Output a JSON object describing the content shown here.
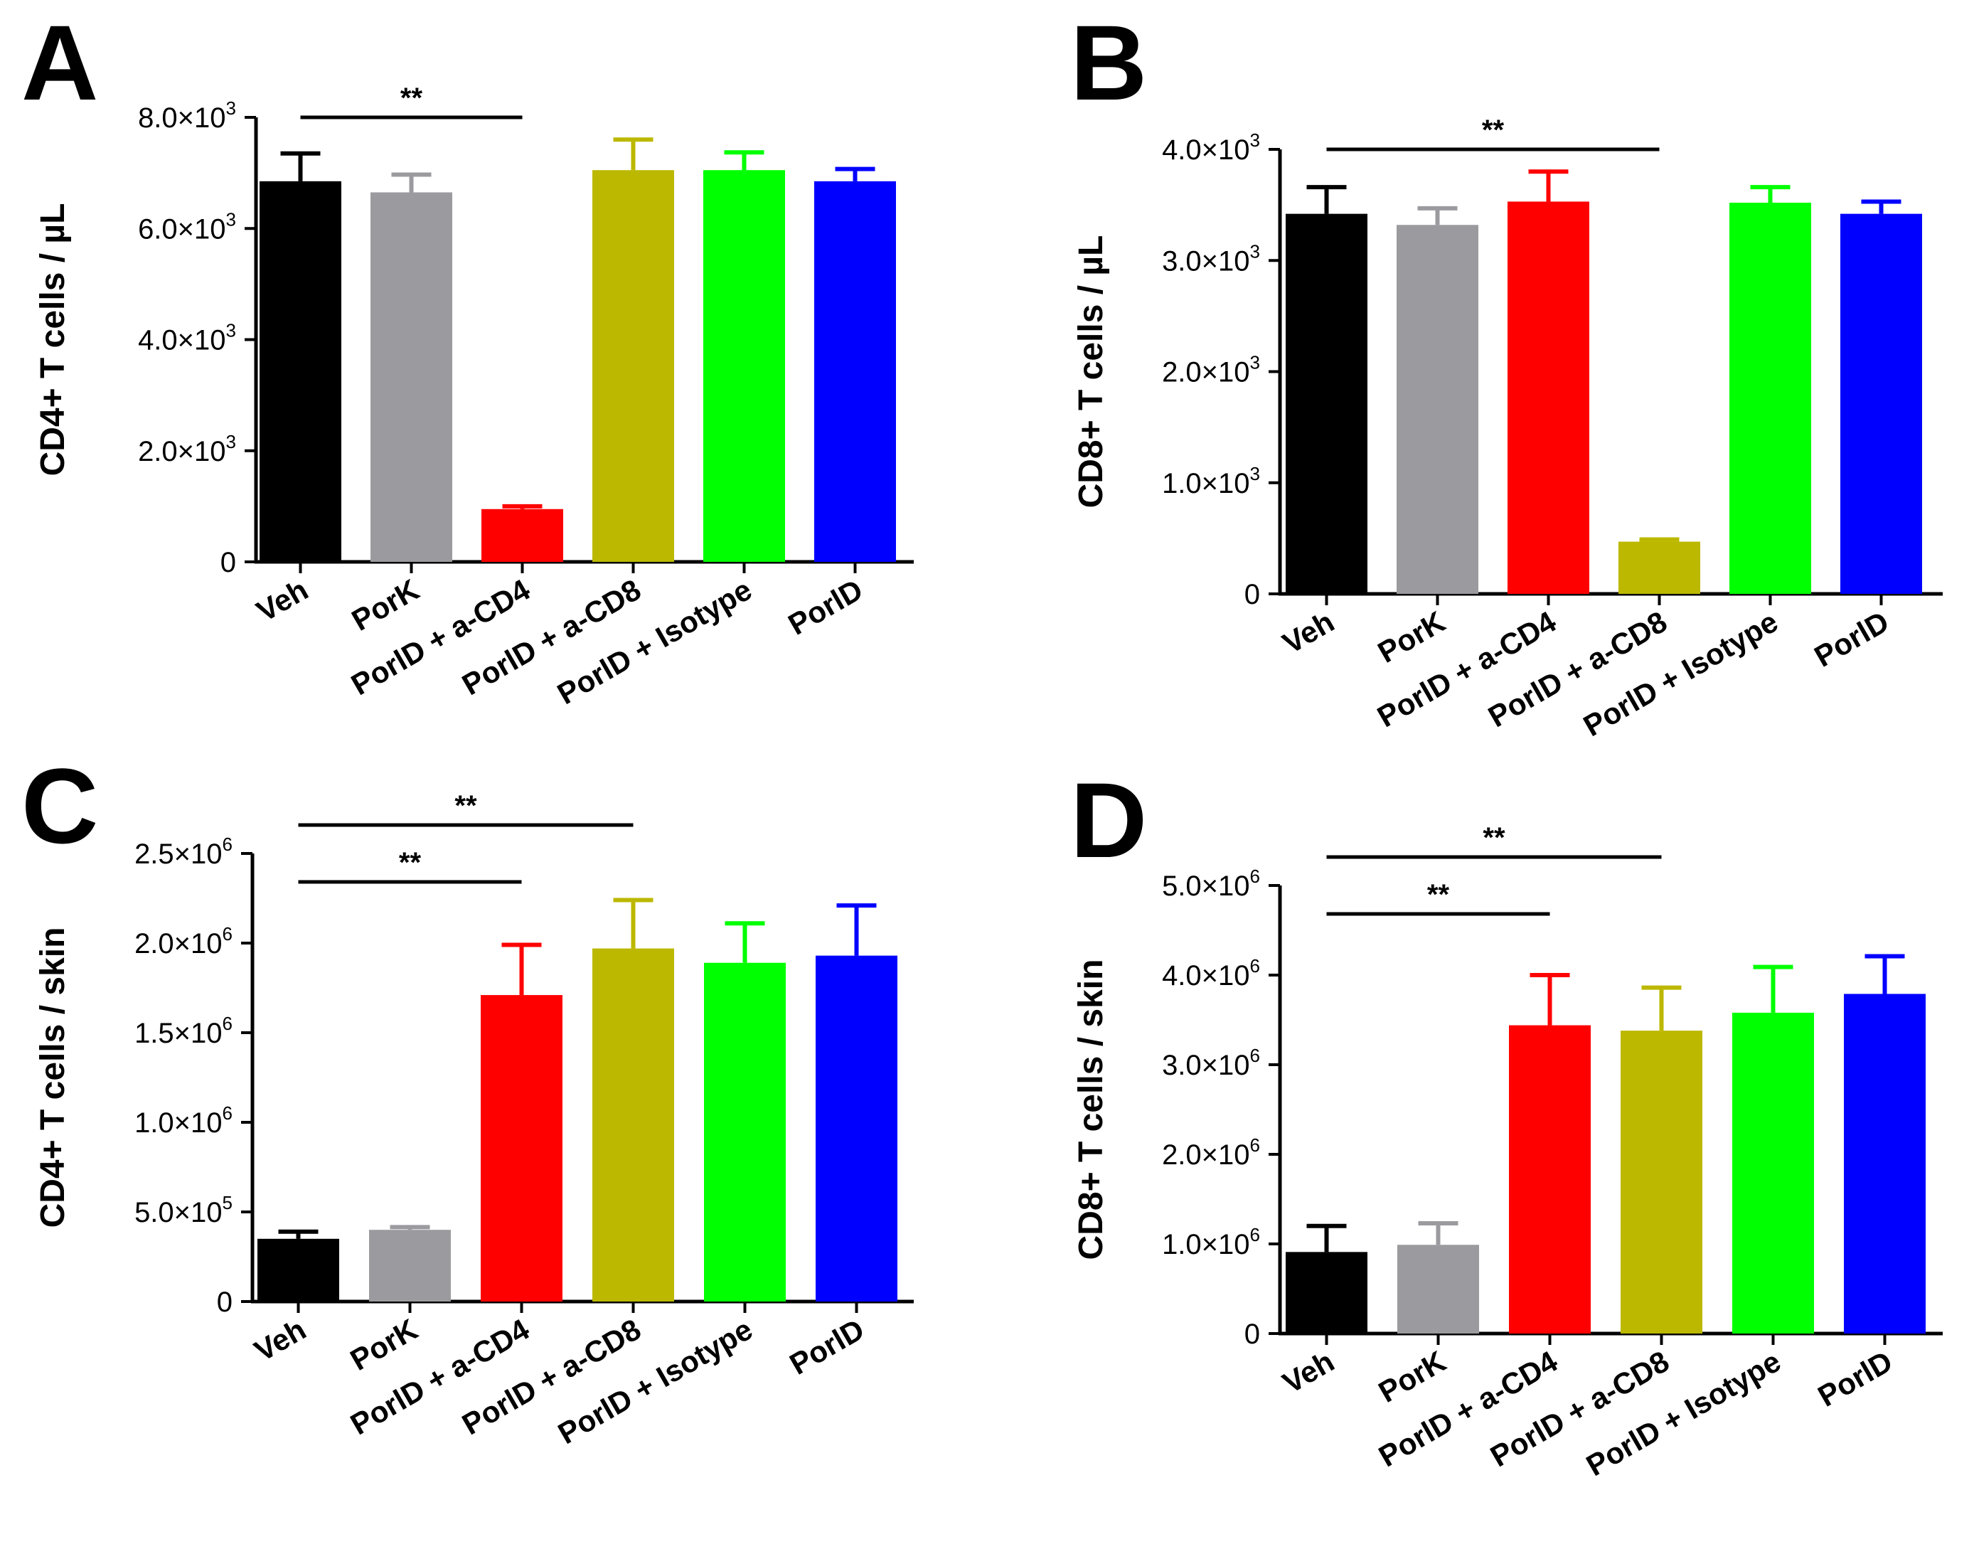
{
  "colors": {
    "Veh": "#000000",
    "PorK": "#9b9b9f",
    "PorlD + a-CD4": "#ff0000",
    "PorlD + a-CD8": "#bcb800",
    "PorlD + Isotype": "#00ff00",
    "PorlD": "#0000ff"
  },
  "chart_data": [
    {
      "panel": "A",
      "type": "bar",
      "ylabel": "CD4+ T cells / µL",
      "categories": [
        "Veh",
        "PorK",
        "PorlD + a-CD4",
        "PorlD + a-CD8",
        "PorlD + Isotype",
        "PorlD"
      ],
      "values": [
        6850,
        6650,
        950,
        7050,
        7050,
        6850
      ],
      "errors": [
        500,
        320,
        50,
        550,
        320,
        220
      ],
      "ylim": [
        0,
        8000
      ],
      "yticks": [
        {
          "value": 0,
          "mant": "0",
          "exp": ""
        },
        {
          "value": 2000,
          "mant": "2.0×10",
          "exp": "3"
        },
        {
          "value": 4000,
          "mant": "4.0×10",
          "exp": "3"
        },
        {
          "value": 6000,
          "mant": "6.0×10",
          "exp": "3"
        },
        {
          "value": 8000,
          "mant": "8.0×10",
          "exp": "3"
        }
      ],
      "significance": [
        {
          "from": 0,
          "to": 2,
          "label": "**",
          "level": 0
        }
      ]
    },
    {
      "panel": "B",
      "type": "bar",
      "ylabel": "CD8+ T cells / µL",
      "categories": [
        "Veh",
        "PorK",
        "PorlD + a-CD4",
        "PorlD + a-CD8",
        "PorlD + Isotype",
        "PorlD"
      ],
      "values": [
        3420,
        3320,
        3530,
        470,
        3520,
        3420
      ],
      "errors": [
        240,
        150,
        270,
        20,
        140,
        110
      ],
      "ylim": [
        0,
        4000
      ],
      "yticks": [
        {
          "value": 0,
          "mant": "0",
          "exp": ""
        },
        {
          "value": 1000,
          "mant": "1.0×10",
          "exp": "3"
        },
        {
          "value": 2000,
          "mant": "2.0×10",
          "exp": "3"
        },
        {
          "value": 3000,
          "mant": "3.0×10",
          "exp": "3"
        },
        {
          "value": 4000,
          "mant": "4.0×10",
          "exp": "3"
        }
      ],
      "significance": [
        {
          "from": 0,
          "to": 3,
          "label": "**",
          "level": 0
        }
      ]
    },
    {
      "panel": "C",
      "type": "bar",
      "ylabel": "CD4+ T cells / skin",
      "categories": [
        "Veh",
        "PorK",
        "PorlD + a-CD4",
        "PorlD + a-CD8",
        "PorlD + Isotype",
        "PorlD"
      ],
      "values": [
        350000,
        400000,
        1710000,
        1970000,
        1890000,
        1930000
      ],
      "errors": [
        40000,
        15000,
        280000,
        270000,
        220000,
        280000
      ],
      "ylim": [
        0,
        2500000
      ],
      "yticks": [
        {
          "value": 0,
          "mant": "0",
          "exp": ""
        },
        {
          "value": 500000,
          "mant": "5.0×10",
          "exp": "5"
        },
        {
          "value": 1000000,
          "mant": "1.0×10",
          "exp": "6"
        },
        {
          "value": 1500000,
          "mant": "1.5×10",
          "exp": "6"
        },
        {
          "value": 2000000,
          "mant": "2.0×10",
          "exp": "6"
        },
        {
          "value": 2500000,
          "mant": "2.5×10",
          "exp": "6"
        }
      ],
      "significance": [
        {
          "from": 0,
          "to": 2,
          "label": "**",
          "level": 0
        },
        {
          "from": 0,
          "to": 3,
          "label": "**",
          "level": 1
        }
      ]
    },
    {
      "panel": "D",
      "type": "bar",
      "ylabel": "CD8+ T cells / skin",
      "categories": [
        "Veh",
        "PorK",
        "PorlD + a-CD4",
        "PorlD + a-CD8",
        "PorlD + Isotype",
        "PorlD"
      ],
      "values": [
        910000,
        990000,
        3440000,
        3380000,
        3580000,
        3790000
      ],
      "errors": [
        290000,
        240000,
        560000,
        480000,
        510000,
        420000
      ],
      "ylim": [
        0,
        5000000
      ],
      "yticks": [
        {
          "value": 0,
          "mant": "0",
          "exp": ""
        },
        {
          "value": 1000000,
          "mant": "1.0×10",
          "exp": "6"
        },
        {
          "value": 2000000,
          "mant": "2.0×10",
          "exp": "6"
        },
        {
          "value": 3000000,
          "mant": "3.0×10",
          "exp": "6"
        },
        {
          "value": 4000000,
          "mant": "4.0×10",
          "exp": "6"
        },
        {
          "value": 5000000,
          "mant": "5.0×10",
          "exp": "6"
        }
      ],
      "significance": [
        {
          "from": 0,
          "to": 2,
          "label": "**",
          "level": 0
        },
        {
          "from": 0,
          "to": 3,
          "label": "**",
          "level": 1
        }
      ]
    }
  ]
}
